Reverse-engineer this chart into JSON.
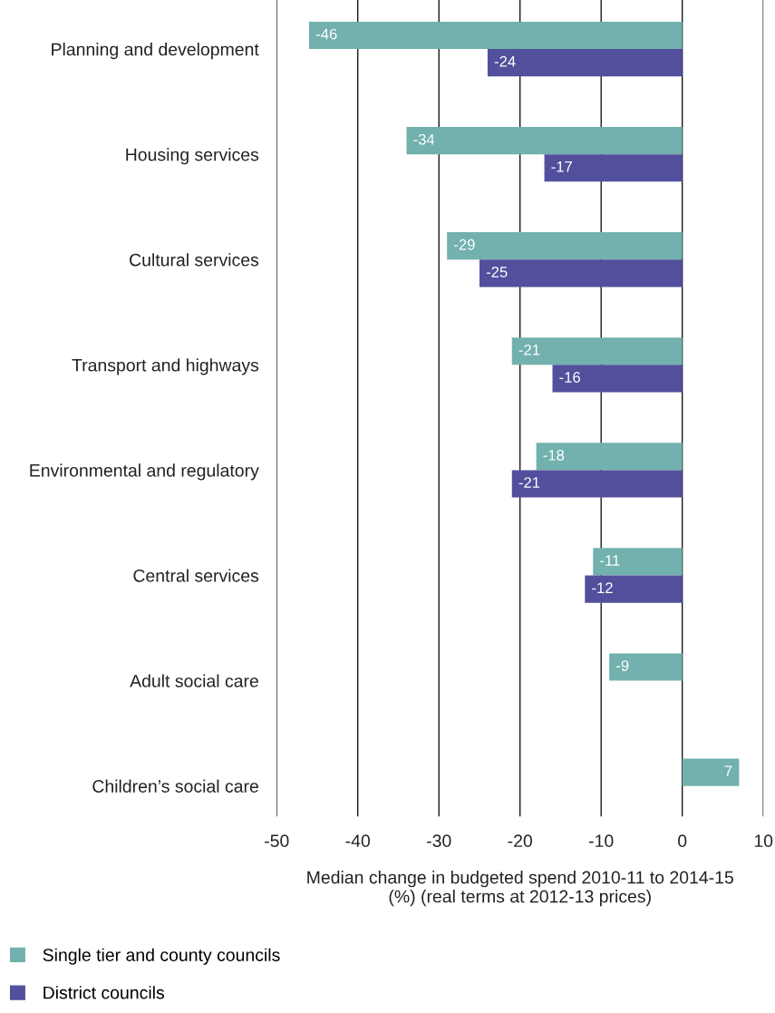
{
  "chart_data": {
    "type": "bar",
    "orientation": "horizontal",
    "categories": [
      "Planning and development",
      "Housing services",
      "Cultural services",
      "Transport and highways",
      "Environmental and regulatory",
      "Central services",
      "Adult social care",
      "Children’s social care"
    ],
    "series": [
      {
        "name": "Single tier and county councils",
        "color": "#72b1ad",
        "values": [
          -46,
          -34,
          -29,
          -21,
          -18,
          -11,
          -9,
          7
        ]
      },
      {
        "name": "District councils",
        "color": "#524f9c",
        "values": [
          -24,
          -17,
          -25,
          -16,
          -21,
          -12,
          null,
          null
        ]
      }
    ],
    "xlim": [
      -50,
      10
    ],
    "xticks": [
      -50,
      -40,
      -30,
      -20,
      -10,
      0,
      10
    ],
    "xlabel": "Median change in budgeted spend 2010-11 to 2014-15\n(%) (real terms at 2012-13 prices)",
    "grid": "x",
    "legend": "bottom left",
    "data_labels": true
  }
}
